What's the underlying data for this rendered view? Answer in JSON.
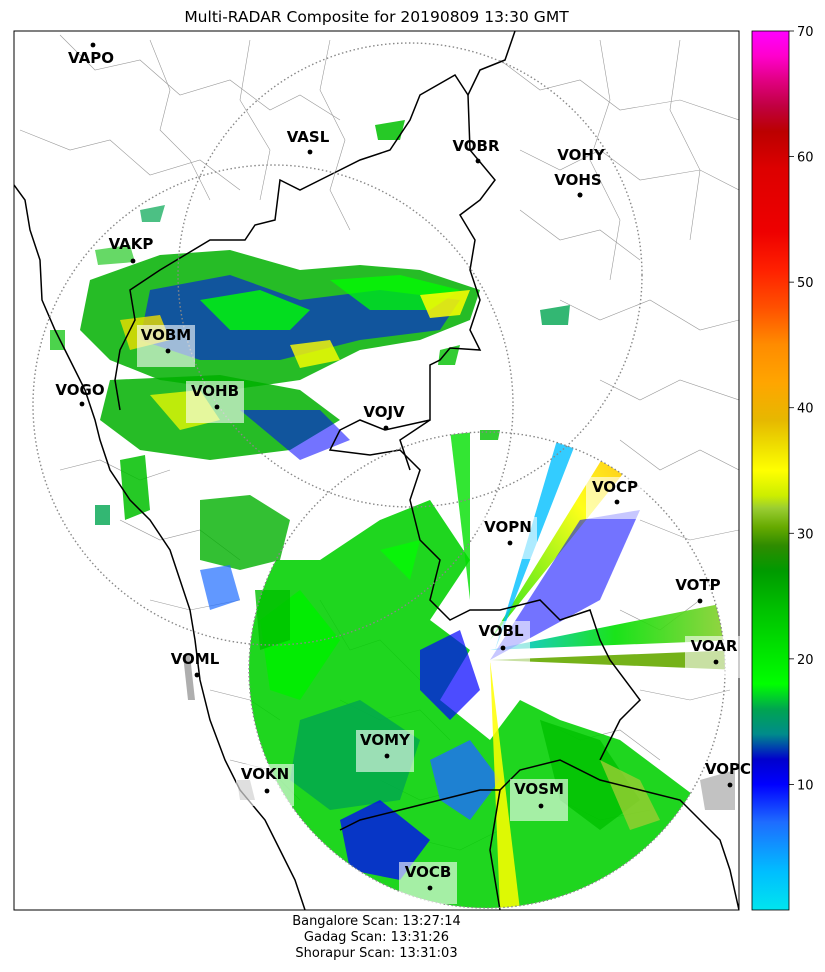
{
  "title": "Multi-RADAR Composite for 20190809 13:30 GMT",
  "stations": [
    {
      "code": "VAPO"
    },
    {
      "code": "VASL"
    },
    {
      "code": "VOBR"
    },
    {
      "code": "VOHY"
    },
    {
      "code": "VOHS"
    },
    {
      "code": "VAKP"
    },
    {
      "code": "VOBM"
    },
    {
      "code": "VOGO"
    },
    {
      "code": "VOHB"
    },
    {
      "code": "VOJV"
    },
    {
      "code": "VOCP"
    },
    {
      "code": "VOPN"
    },
    {
      "code": "VOTP"
    },
    {
      "code": "VOBL"
    },
    {
      "code": "VOAR"
    },
    {
      "code": "VOML"
    },
    {
      "code": "VOMY"
    },
    {
      "code": "VOKN"
    },
    {
      "code": "VOPC"
    },
    {
      "code": "VOSM"
    },
    {
      "code": "VOCB"
    }
  ],
  "colorbar": {
    "min": 0,
    "max": 70,
    "tick_labels": [
      "10",
      "20",
      "30",
      "40",
      "50",
      "60",
      "70"
    ],
    "stops": [
      {
        "v": 0,
        "c": "#00e5ee"
      },
      {
        "v": 3,
        "c": "#00bfff"
      },
      {
        "v": 7,
        "c": "#1e6cff"
      },
      {
        "v": 10,
        "c": "#0000ff"
      },
      {
        "v": 12,
        "c": "#0000cd"
      },
      {
        "v": 14,
        "c": "#008b8b"
      },
      {
        "v": 16,
        "c": "#00a550"
      },
      {
        "v": 18,
        "c": "#00ff00"
      },
      {
        "v": 21,
        "c": "#00e000"
      },
      {
        "v": 24,
        "c": "#00c000"
      },
      {
        "v": 27,
        "c": "#009a00"
      },
      {
        "v": 29,
        "c": "#2e8b00"
      },
      {
        "v": 30.5,
        "c": "#66aa00"
      },
      {
        "v": 32,
        "c": "#9acd32"
      },
      {
        "v": 33,
        "c": "#ccee00"
      },
      {
        "v": 35,
        "c": "#ffff00"
      },
      {
        "v": 37,
        "c": "#eedd00"
      },
      {
        "v": 39,
        "c": "#e6b800"
      },
      {
        "v": 42,
        "c": "#ffa500"
      },
      {
        "v": 45,
        "c": "#ff8c00"
      },
      {
        "v": 48,
        "c": "#ff5000"
      },
      {
        "v": 51,
        "c": "#ff2000"
      },
      {
        "v": 54,
        "c": "#ee0000"
      },
      {
        "v": 59,
        "c": "#dd0000"
      },
      {
        "v": 62,
        "c": "#bb0000"
      },
      {
        "v": 64,
        "c": "#c00040"
      },
      {
        "v": 66,
        "c": "#e00080"
      },
      {
        "v": 68,
        "c": "#ff00cc"
      },
      {
        "v": 70,
        "c": "#ff00ff"
      }
    ]
  },
  "footer": {
    "line1": "Bangalore Scan: 13:27:14",
    "line2": "Gadag Scan: 13:31:26",
    "line3": "Shorapur Scan: 13:31:03"
  }
}
